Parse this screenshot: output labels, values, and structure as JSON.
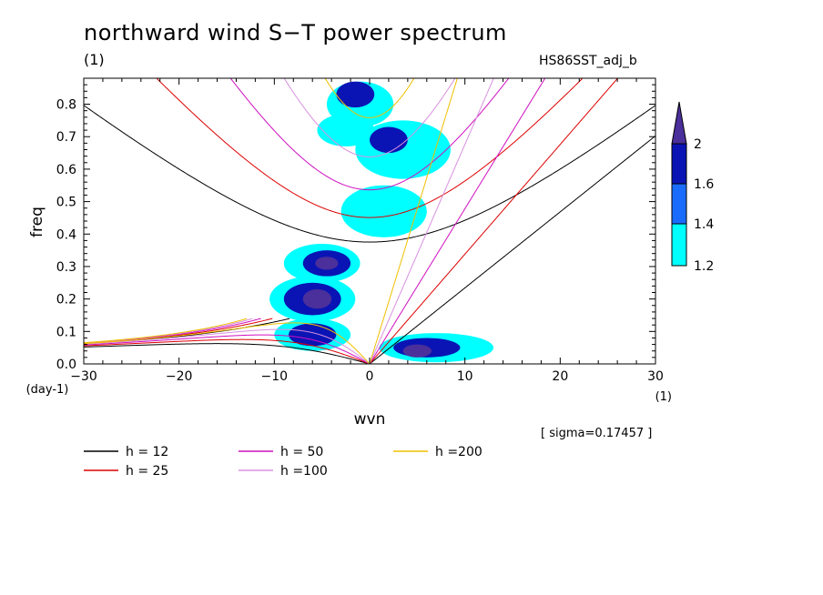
{
  "title": "northward wind S−T power spectrum",
  "units_label": "(1)",
  "experiment": "HS86SST_adj_b",
  "sigma_note": "[ sigma=0.17457 ]",
  "colors": {
    "level_1_2": "#00ffff",
    "level_1_4": "#1a6cff",
    "level_1_6": "#0a14b4",
    "level_2": "#4b2f9a",
    "h12": "#000000",
    "h25": "#dd0000",
    "h50": "#d010c0",
    "h100": "#d890e0",
    "h200": "#f0c000"
  },
  "colorbar": {
    "labels": [
      "2",
      "1.6",
      "1.4",
      "1.2"
    ],
    "shape": "triangle-top"
  },
  "chart_data": {
    "type": "contour",
    "xlabel": "wvn",
    "xunit": "(1)",
    "ylabel": "freq",
    "yunit": "(day-1)",
    "xlim": [
      -30,
      30
    ],
    "ylim": [
      0.0,
      0.88
    ],
    "x_ticks": [
      -30,
      -20,
      -10,
      0,
      10,
      20,
      30
    ],
    "x_tick_labels": [
      "−30",
      "−20",
      "−10",
      "0",
      "10",
      "20",
      "30"
    ],
    "y_ticks": [
      0.0,
      0.1,
      0.2,
      0.3,
      0.4,
      0.5,
      0.6,
      0.7,
      0.8
    ],
    "y_tick_labels": [
      "0.0",
      "0.1",
      "0.2",
      "0.3",
      "0.4",
      "0.5",
      "0.6",
      "0.7",
      "0.8"
    ],
    "contour_levels": [
      1.2,
      1.4,
      1.6,
      2.0
    ],
    "shaded_regions": [
      {
        "level": 1.2,
        "x": -6,
        "y": 0.2,
        "rx": 4.5,
        "ry": 0.07
      },
      {
        "level": 1.2,
        "x": -5,
        "y": 0.31,
        "rx": 4,
        "ry": 0.06
      },
      {
        "level": 1.2,
        "x": -6,
        "y": 0.09,
        "rx": 4,
        "ry": 0.05
      },
      {
        "level": 1.2,
        "x": 7,
        "y": 0.05,
        "rx": 6,
        "ry": 0.045
      },
      {
        "level": 1.2,
        "x": 1.5,
        "y": 0.47,
        "rx": 4.5,
        "ry": 0.08
      },
      {
        "level": 1.2,
        "x": 3.5,
        "y": 0.66,
        "rx": 5,
        "ry": 0.09
      },
      {
        "level": 1.2,
        "x": -1,
        "y": 0.8,
        "rx": 3.5,
        "ry": 0.07
      },
      {
        "level": 1.2,
        "x": -2.5,
        "y": 0.72,
        "rx": 3,
        "ry": 0.05
      },
      {
        "level": 1.6,
        "x": -6,
        "y": 0.2,
        "rx": 3,
        "ry": 0.05
      },
      {
        "level": 1.6,
        "x": -4.5,
        "y": 0.31,
        "rx": 2.5,
        "ry": 0.04
      },
      {
        "level": 1.6,
        "x": -6,
        "y": 0.09,
        "rx": 2.5,
        "ry": 0.035
      },
      {
        "level": 1.6,
        "x": 6,
        "y": 0.05,
        "rx": 3.5,
        "ry": 0.03
      },
      {
        "level": 1.6,
        "x": 2,
        "y": 0.69,
        "rx": 2,
        "ry": 0.04
      },
      {
        "level": 1.6,
        "x": -1.5,
        "y": 0.83,
        "rx": 2,
        "ry": 0.04
      },
      {
        "level": 2.0,
        "x": -5.5,
        "y": 0.2,
        "rx": 1.5,
        "ry": 0.03
      },
      {
        "level": 2.0,
        "x": -4.5,
        "y": 0.31,
        "rx": 1.2,
        "ry": 0.02
      },
      {
        "level": 2.0,
        "x": 5,
        "y": 0.04,
        "rx": 1.5,
        "ry": 0.02
      }
    ],
    "dispersion_curves": [
      {
        "name": "h = 12",
        "equivalent_depth": 12,
        "color_key": "h12"
      },
      {
        "name": "h = 25",
        "equivalent_depth": 25,
        "color_key": "h25"
      },
      {
        "name": "h = 50",
        "equivalent_depth": 50,
        "color_key": "h50"
      },
      {
        "name": "h =100",
        "equivalent_depth": 100,
        "color_key": "h100"
      },
      {
        "name": "h =200",
        "equivalent_depth": 200,
        "color_key": "h200"
      }
    ],
    "grid": false,
    "legend_position": "bottom-left"
  }
}
